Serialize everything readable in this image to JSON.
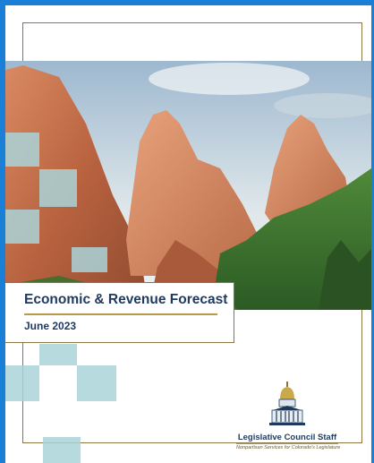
{
  "header": {
    "title": "Economic & Revenue Forecast",
    "date": "June 2023"
  },
  "logo": {
    "name": "Legislative Council Staff",
    "tagline": "Nonpartisan Services for Colorado's Legislature"
  }
}
